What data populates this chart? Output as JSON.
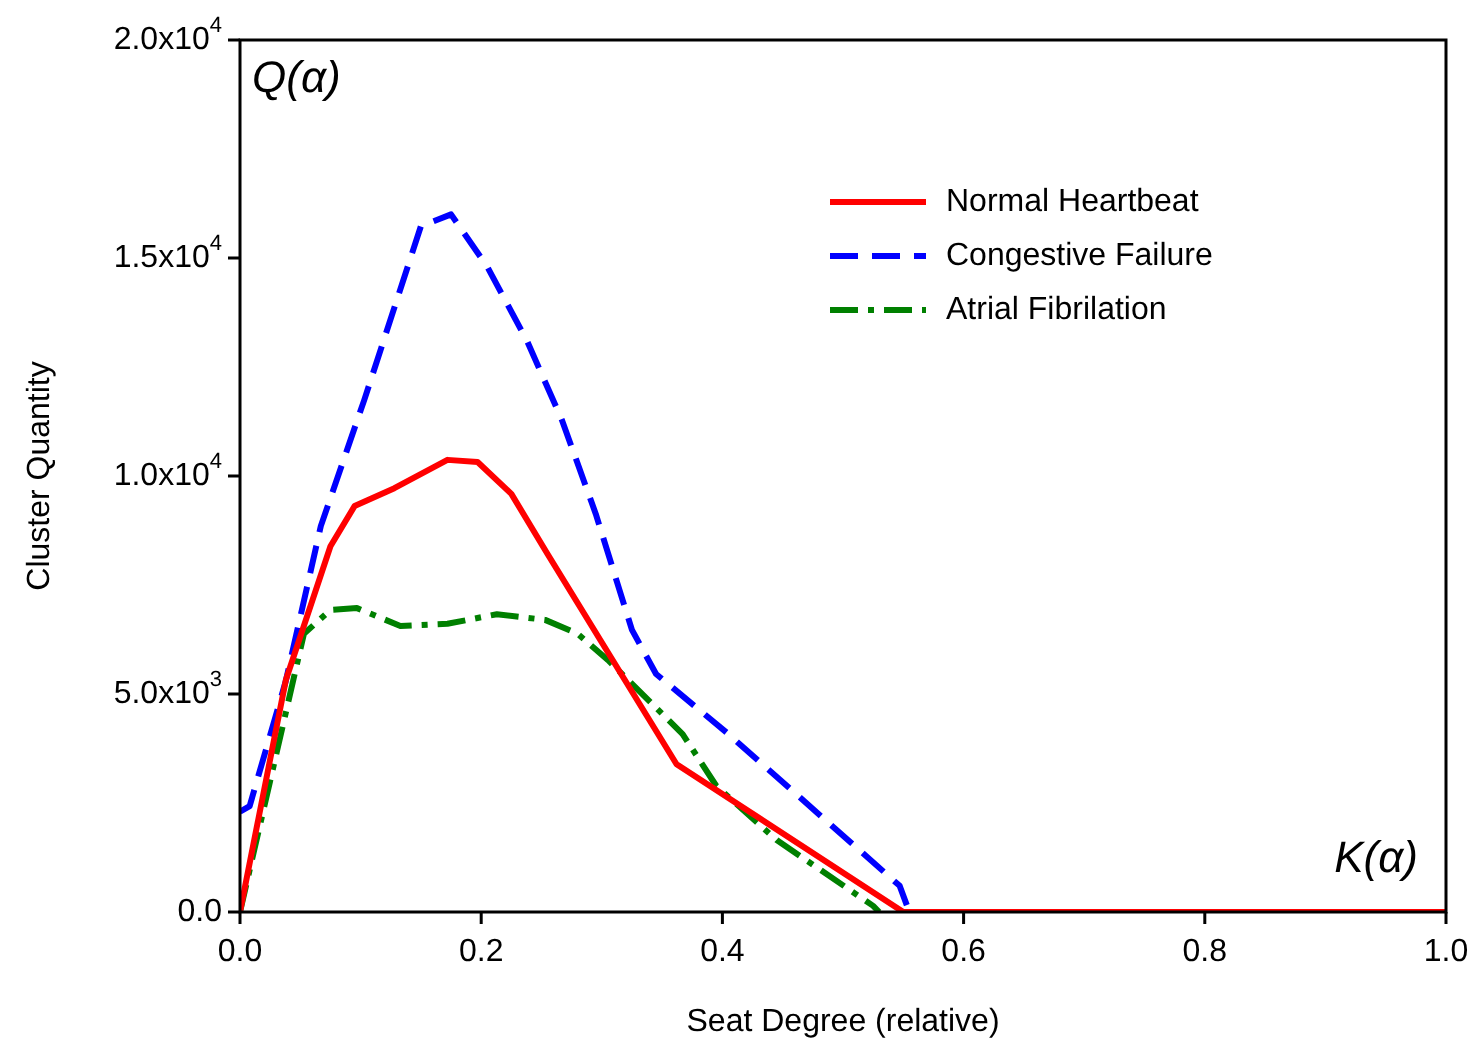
{
  "chart_data": {
    "type": "line",
    "xlabel": "Seat Degree (relative)",
    "ylabel": "Cluster Quantity",
    "annotations": [
      "Q(α)",
      "K(α)"
    ],
    "xlim": [
      0,
      1
    ],
    "ylim": [
      0,
      20000
    ],
    "xticks": [
      {
        "value": 0,
        "label": "0.0"
      },
      {
        "value": 0.2,
        "label": "0.2"
      },
      {
        "value": 0.4,
        "label": "0.4"
      },
      {
        "value": 0.6,
        "label": "0.6"
      },
      {
        "value": 0.8,
        "label": "0.8"
      },
      {
        "value": 1,
        "label": "1.0"
      }
    ],
    "yticks": [
      {
        "value": 0,
        "label": "0.0"
      },
      {
        "value": 5000,
        "label": "5.0x10$^{3}$"
      },
      {
        "value": 10000,
        "label": "1.0x10$^{4}$"
      },
      {
        "value": 15000,
        "label": "1.5x10$^{4}$"
      },
      {
        "value": 20000,
        "label": "2.0x10$^{4}$"
      }
    ],
    "grid": false,
    "legend": "top right",
    "marker": "none",
    "series": [
      {
        "name": "Normal Heartbeat",
        "color": "#ff0000",
        "line_style": "solid",
        "x": [
          0,
          0.038,
          0.075,
          0.095,
          0.128,
          0.172,
          0.197,
          0.225,
          0.255,
          0.362,
          0.55,
          0.6,
          0.8,
          1
        ],
        "values": [
          0,
          5320,
          8390,
          9310,
          9720,
          10370,
          10320,
          9590,
          8210,
          3390,
          0,
          0,
          0,
          0
        ]
      },
      {
        "name": "Congestive Failure",
        "color": "#0000ff",
        "line_style": "dashed",
        "x": [
          0,
          0.008,
          0.038,
          0.067,
          0.1,
          0.103,
          0.15,
          0.175,
          0.205,
          0.238,
          0.267,
          0.295,
          0.325,
          0.345,
          0.405,
          0.547,
          0.555
        ],
        "values": [
          2300,
          2430,
          5300,
          8850,
          11500,
          11740,
          15730,
          16000,
          14800,
          13100,
          11280,
          9130,
          6470,
          5460,
          4080,
          600,
          0
        ]
      },
      {
        "name": "Atrial Fibrilation",
        "color": "#008000",
        "line_style": "dashdot",
        "x": [
          0,
          0.053,
          0.075,
          0.097,
          0.133,
          0.172,
          0.213,
          0.253,
          0.28,
          0.305,
          0.367,
          0.395,
          0.445,
          0.525,
          0.53
        ],
        "values": [
          0,
          6380,
          6930,
          6970,
          6560,
          6610,
          6830,
          6700,
          6380,
          5780,
          4080,
          2890,
          1650,
          140,
          0
        ]
      }
    ]
  }
}
